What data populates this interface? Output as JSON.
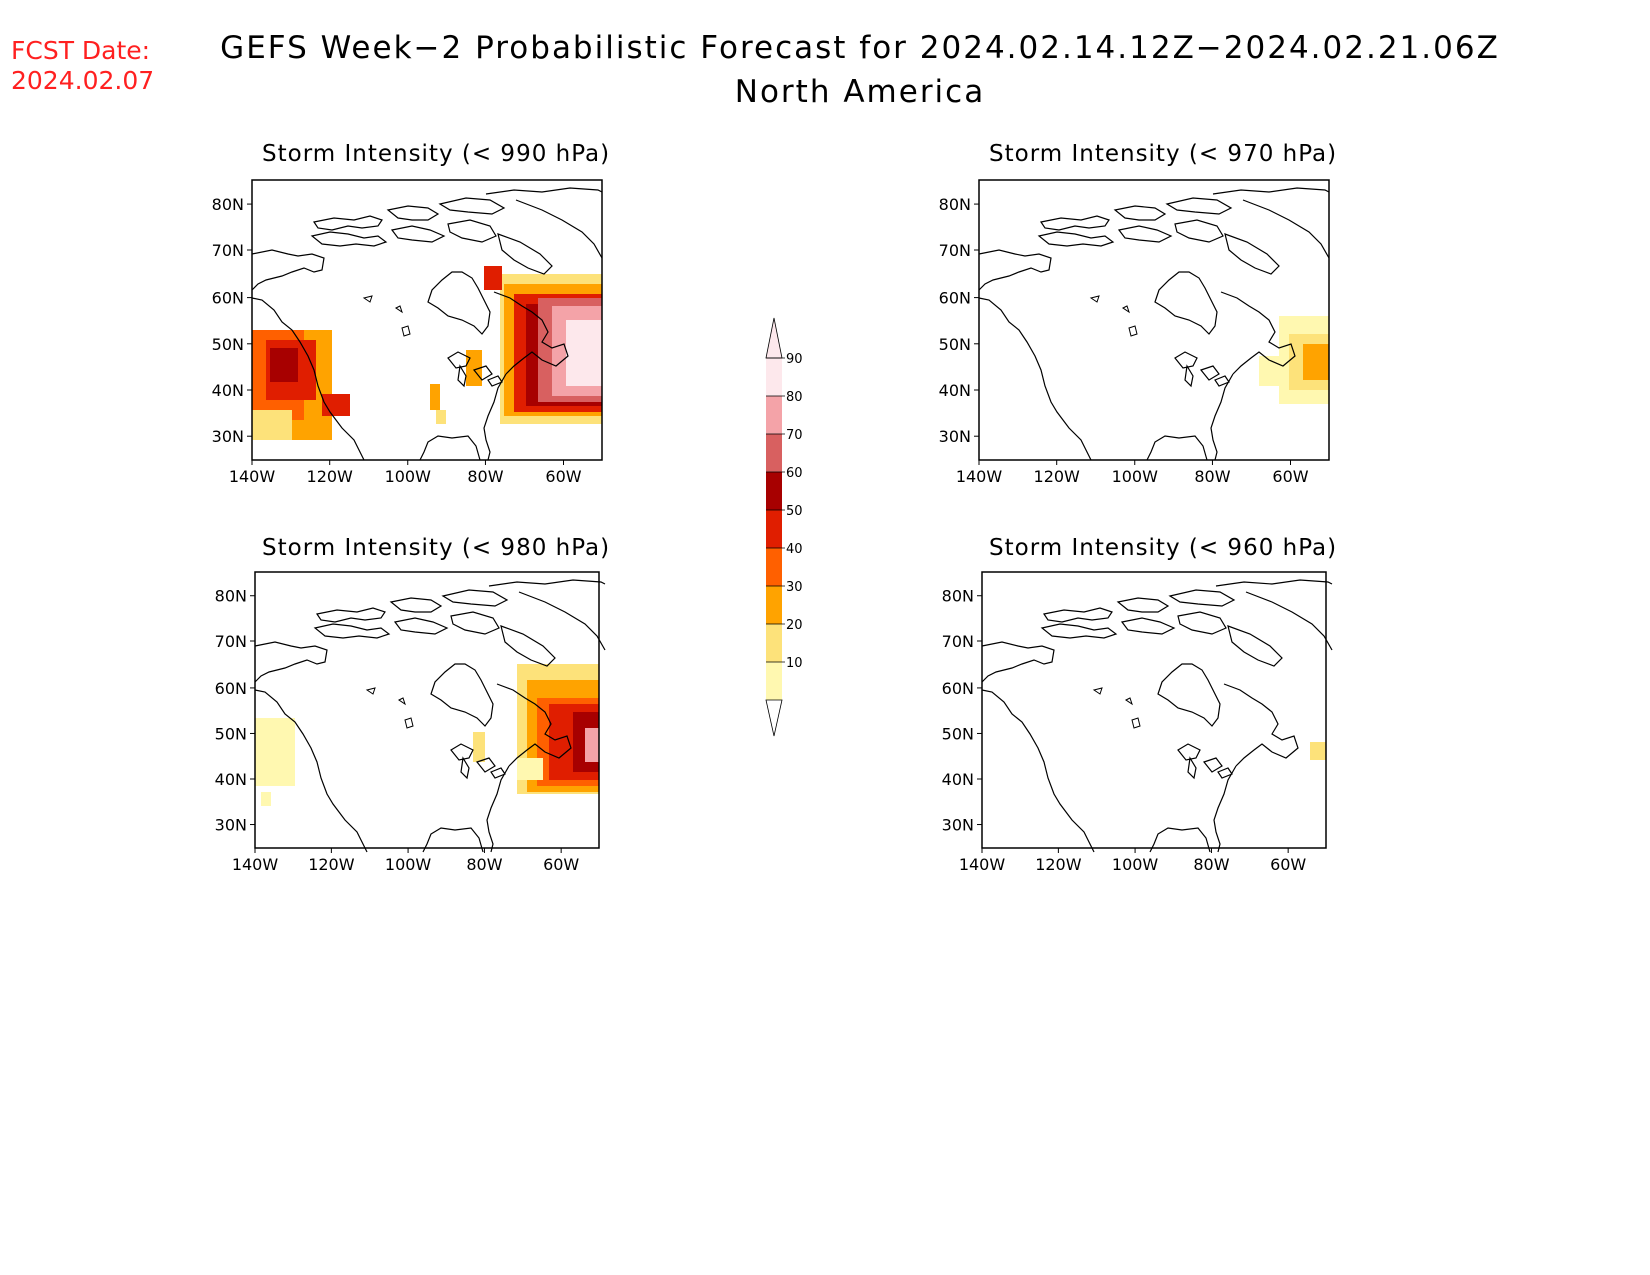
{
  "fcst": {
    "label": "FCST Date:",
    "date": "2024.02.07"
  },
  "title": {
    "line1": "GEFS Week−2 Probabilistic Forecast for 2024.02.14.12Z−2024.02.21.06Z",
    "line2": "North America"
  },
  "panels": [
    {
      "id": "p990",
      "title": "Storm Intensity (< 990 hPa)"
    },
    {
      "id": "p970",
      "title": "Storm Intensity (< 970 hPa)"
    },
    {
      "id": "p980",
      "title": "Storm Intensity (< 980 hPa)"
    },
    {
      "id": "p960",
      "title": "Storm Intensity (< 960 hPa)"
    }
  ],
  "axes": {
    "lat_labels": [
      "80N",
      "70N",
      "60N",
      "50N",
      "40N",
      "30N"
    ],
    "lon_labels": [
      "140W",
      "120W",
      "100W",
      "80W",
      "60W"
    ]
  },
  "colorbar": {
    "levels": [
      "10",
      "20",
      "30",
      "40",
      "50",
      "60",
      "70",
      "80",
      "90"
    ],
    "colors": [
      "#fff8b0",
      "#fde27a",
      "#ffa300",
      "#ff6000",
      "#e01e00",
      "#a70000",
      "#d86060",
      "#f4a3a8",
      "#fde8ec"
    ]
  }
}
